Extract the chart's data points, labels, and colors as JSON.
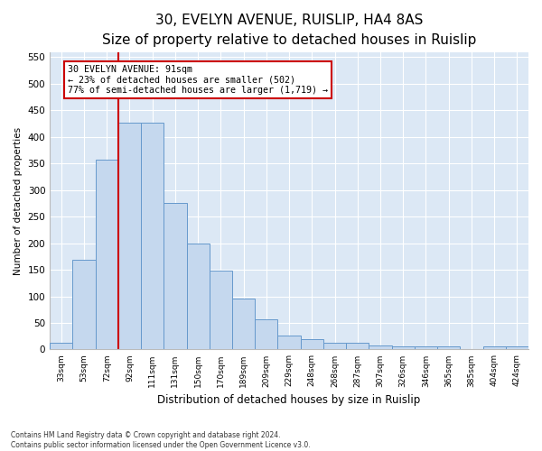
{
  "title1": "30, EVELYN AVENUE, RUISLIP, HA4 8AS",
  "title2": "Size of property relative to detached houses in Ruislip",
  "xlabel": "Distribution of detached houses by size in Ruislip",
  "ylabel": "Number of detached properties",
  "categories": [
    "33sqm",
    "53sqm",
    "72sqm",
    "92sqm",
    "111sqm",
    "131sqm",
    "150sqm",
    "170sqm",
    "189sqm",
    "209sqm",
    "229sqm",
    "248sqm",
    "268sqm",
    "287sqm",
    "307sqm",
    "326sqm",
    "346sqm",
    "365sqm",
    "385sqm",
    "404sqm",
    "424sqm"
  ],
  "values": [
    13,
    168,
    357,
    427,
    427,
    275,
    200,
    148,
    96,
    56,
    27,
    20,
    12,
    12,
    8,
    5,
    5,
    5,
    1,
    5,
    5
  ],
  "bar_color": "#c5d8ee",
  "bar_edge_color": "#6699cc",
  "annotation_text_line1": "30 EVELYN AVENUE: 91sqm",
  "annotation_text_line2": "← 23% of detached houses are smaller (502)",
  "annotation_text_line3": "77% of semi-detached houses are larger (1,719) →",
  "vline_color": "#cc0000",
  "vline_x": 2.5,
  "ylim": [
    0,
    560
  ],
  "yticks": [
    0,
    50,
    100,
    150,
    200,
    250,
    300,
    350,
    400,
    450,
    500,
    550
  ],
  "footer1": "Contains HM Land Registry data © Crown copyright and database right 2024.",
  "footer2": "Contains public sector information licensed under the Open Government Licence v3.0.",
  "fig_bg_color": "#ffffff",
  "plot_bg_color": "#dce8f5",
  "grid_color": "#ffffff",
  "title1_fontsize": 11,
  "title2_fontsize": 9
}
